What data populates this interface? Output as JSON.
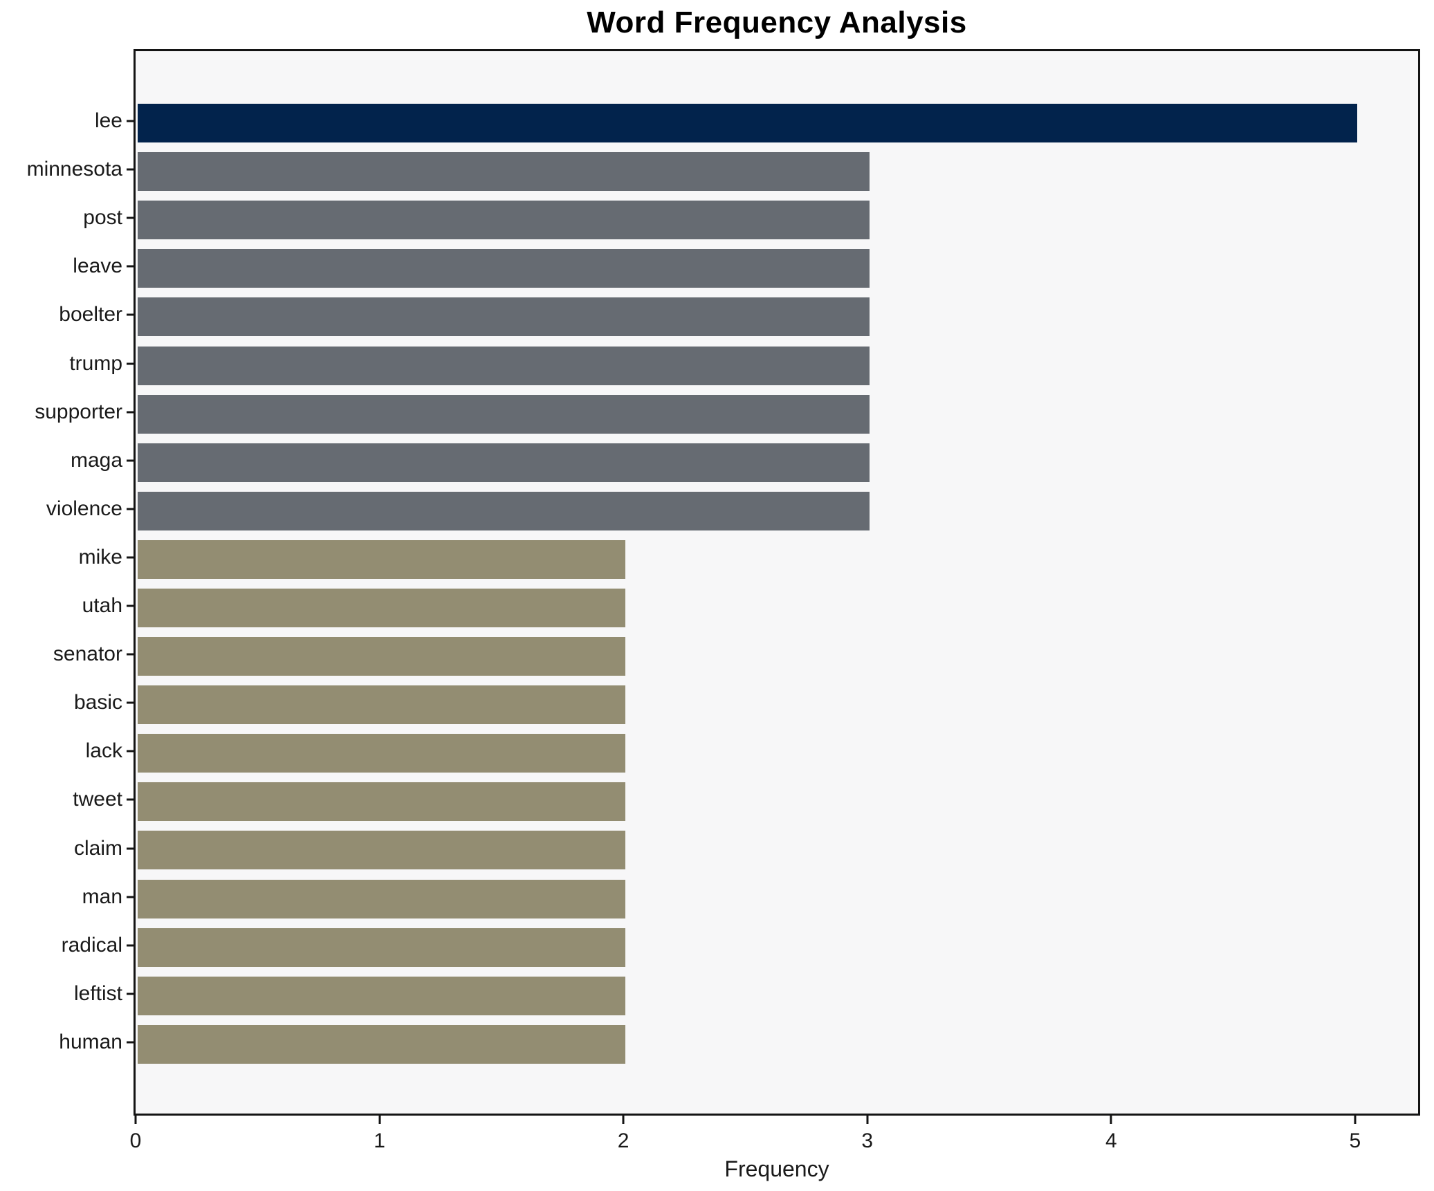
{
  "chart_data": {
    "type": "bar",
    "orientation": "horizontal",
    "title": "Word Frequency Analysis",
    "xlabel": "Frequency",
    "ylabel": "",
    "categories": [
      "lee",
      "minnesota",
      "post",
      "leave",
      "boelter",
      "trump",
      "supporter",
      "maga",
      "violence",
      "mike",
      "utah",
      "senator",
      "basic",
      "lack",
      "tweet",
      "claim",
      "man",
      "radical",
      "leftist",
      "human"
    ],
    "values": [
      5,
      3,
      3,
      3,
      3,
      3,
      3,
      3,
      3,
      2,
      2,
      2,
      2,
      2,
      2,
      2,
      2,
      2,
      2,
      2
    ],
    "bar_colors": [
      "#02234c",
      "#666b72",
      "#666b72",
      "#666b72",
      "#666b72",
      "#666b72",
      "#666b72",
      "#666b72",
      "#666b72",
      "#938d72",
      "#938d72",
      "#938d72",
      "#938d72",
      "#938d72",
      "#938d72",
      "#938d72",
      "#938d72",
      "#938d72",
      "#938d72",
      "#938d72"
    ],
    "xlim": [
      0,
      5.25
    ],
    "xticks": [
      0,
      1,
      2,
      3,
      4,
      5
    ],
    "grid": false,
    "legend_position": "none",
    "plot_background": "#f7f7f8",
    "spine_color": "#141414",
    "bar_height_ratio": 0.8
  }
}
